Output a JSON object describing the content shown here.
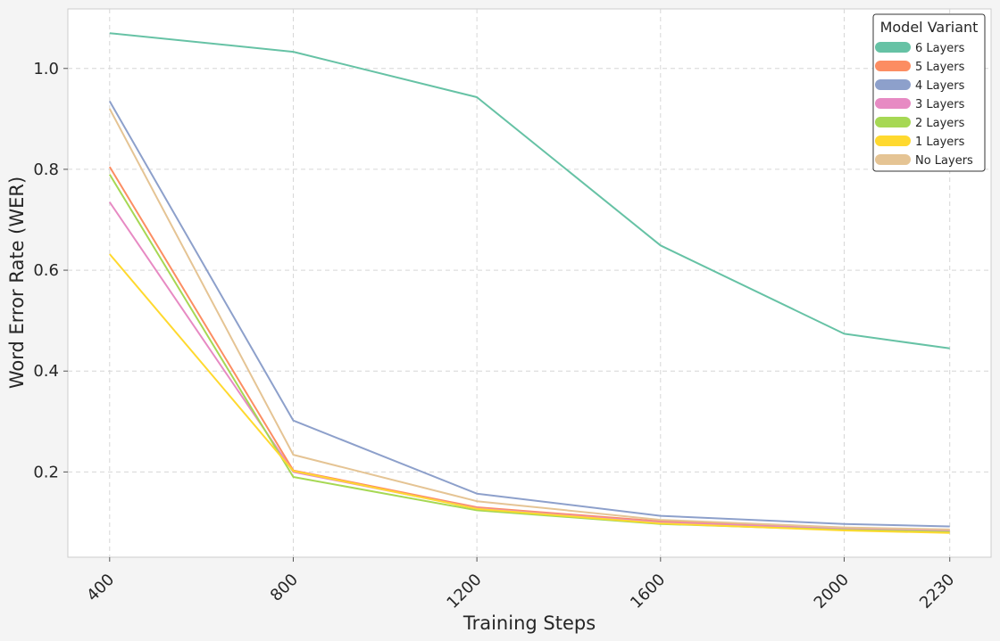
{
  "chart_data": {
    "type": "line",
    "title": "",
    "xlabel": "Training Steps",
    "ylabel": "Word Error Rate (WER)",
    "x": [
      400,
      800,
      1200,
      1600,
      2000,
      2230
    ],
    "x_tick_labels": [
      "400",
      "800",
      "1200",
      "1600",
      "2000",
      "2230"
    ],
    "xlim": [
      309,
      2320
    ],
    "ylim": [
      0.031,
      1.118
    ],
    "y_ticks": [
      0.2,
      0.4,
      0.6,
      0.8,
      1.0
    ],
    "y_tick_labels": [
      "0.2",
      "0.4",
      "0.6",
      "0.8",
      "1.0"
    ],
    "grid": true,
    "legend": {
      "title": "Model Variant",
      "placement": "top-right"
    },
    "series": [
      {
        "name": "6 Layers",
        "color": "#66c2a5",
        "values": [
          1.07,
          1.033,
          0.943,
          0.649,
          0.474,
          0.445
        ]
      },
      {
        "name": "5 Layers",
        "color": "#fc8d62",
        "values": [
          0.805,
          0.203,
          0.13,
          0.102,
          0.088,
          0.085
        ]
      },
      {
        "name": "4 Layers",
        "color": "#8da0cb",
        "values": [
          0.935,
          0.302,
          0.157,
          0.113,
          0.097,
          0.092
        ]
      },
      {
        "name": "3 Layers",
        "color": "#e78ac3",
        "values": [
          0.735,
          0.2,
          0.128,
          0.1,
          0.087,
          0.084
        ]
      },
      {
        "name": "2 Layers",
        "color": "#a6d854",
        "values": [
          0.79,
          0.19,
          0.124,
          0.097,
          0.085,
          0.081
        ]
      },
      {
        "name": "1 Layers",
        "color": "#ffd92f",
        "values": [
          0.632,
          0.202,
          0.127,
          0.098,
          0.084,
          0.079
        ]
      },
      {
        "name": "No Layers",
        "color": "#e5c494",
        "values": [
          0.92,
          0.234,
          0.142,
          0.105,
          0.09,
          0.086
        ]
      }
    ]
  }
}
